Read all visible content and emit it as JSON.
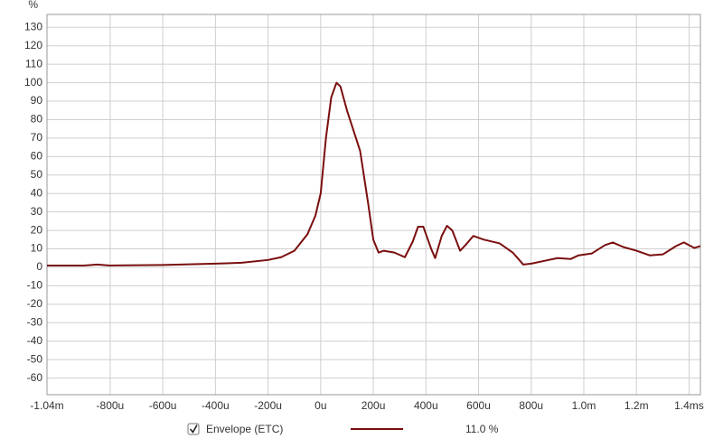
{
  "chart_data": {
    "type": "line",
    "y_label": "%",
    "x": [
      -1040,
      -900,
      -850,
      -800,
      -600,
      -400,
      -300,
      -200,
      -150,
      -100,
      -50,
      -20,
      0,
      20,
      40,
      60,
      75,
      100,
      150,
      180,
      200,
      220,
      240,
      280,
      320,
      350,
      370,
      390,
      420,
      435,
      460,
      480,
      500,
      530,
      550,
      580,
      620,
      680,
      730,
      770,
      800,
      850,
      900,
      950,
      980,
      1030,
      1080,
      1110,
      1150,
      1200,
      1250,
      1300,
      1350,
      1380,
      1420,
      1443
    ],
    "series": [
      {
        "name": "Envelope (ETC)",
        "color": "#7a0e0e",
        "readout": "11.0 %",
        "checked": true,
        "values": [
          1,
          1,
          1.5,
          1,
          1.3,
          2,
          2.5,
          4,
          5.5,
          9,
          18,
          28,
          40,
          70,
          92,
          100,
          98,
          85,
          63,
          35,
          15,
          8,
          9,
          8,
          5.5,
          14,
          22,
          22,
          10,
          5,
          17,
          22.5,
          20,
          9,
          12,
          17,
          15,
          13,
          8,
          1.5,
          2,
          3.5,
          5,
          4.5,
          6.5,
          7.5,
          12,
          13.5,
          11,
          9,
          6.5,
          7,
          11.5,
          13.5,
          10.5,
          11.5
        ]
      }
    ],
    "xlim": [
      -1040,
      1443
    ],
    "xticks": [
      {
        "value": -1040,
        "label": "-1.04m"
      },
      {
        "value": -800,
        "label": "-800u"
      },
      {
        "value": -600,
        "label": "-600u"
      },
      {
        "value": -400,
        "label": "-400u"
      },
      {
        "value": -200,
        "label": "-200u"
      },
      {
        "value": 0,
        "label": "0u"
      },
      {
        "value": 200,
        "label": "200u"
      },
      {
        "value": 400,
        "label": "400u"
      },
      {
        "value": 600,
        "label": "600u"
      },
      {
        "value": 800,
        "label": "800u"
      },
      {
        "value": 1000,
        "label": "1.0m"
      },
      {
        "value": 1200,
        "label": "1.2m"
      },
      {
        "value": 1400,
        "label": "1.4ms"
      }
    ],
    "ylim": [
      -69,
      137
    ],
    "yticks": [
      -60,
      -50,
      -40,
      -30,
      -20,
      -10,
      0,
      10,
      20,
      30,
      40,
      50,
      60,
      70,
      80,
      90,
      100,
      110,
      120,
      130
    ],
    "grid": true
  }
}
